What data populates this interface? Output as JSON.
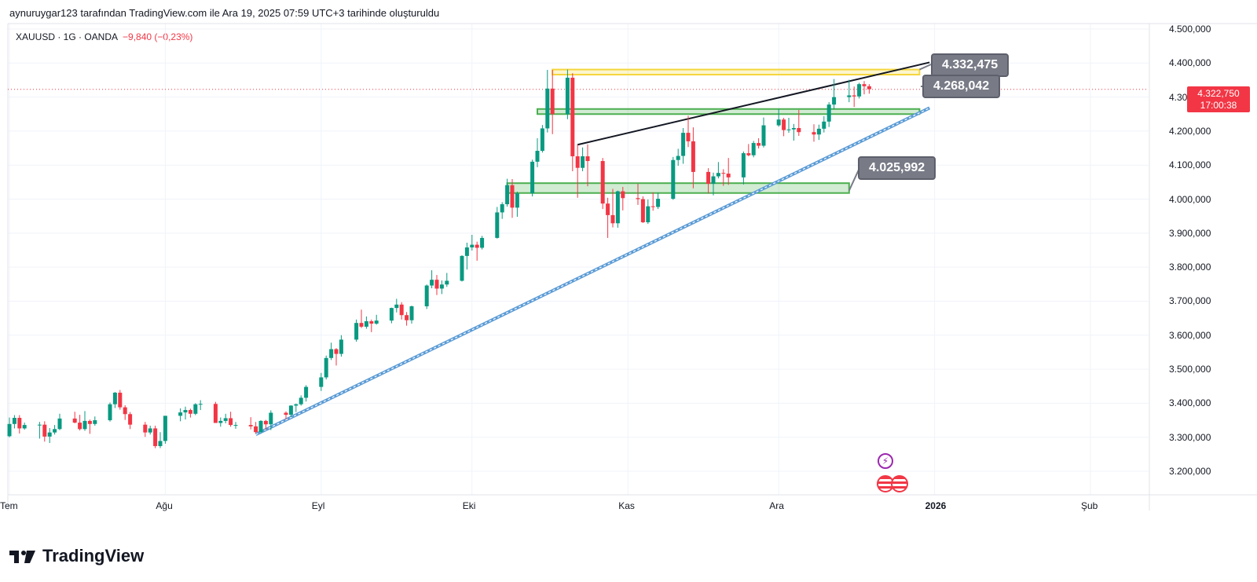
{
  "header": {
    "credit": "aynuruygar123 tarafından TradingView.com ile Ara 19, 2025 07:59 UTC+3 tarihinde oluşturuldu"
  },
  "symbol": {
    "name": "XAUUSD · 1G · OANDA",
    "change": "−9,840 (−0,23%)"
  },
  "current_price": {
    "value": "4.322,750",
    "countdown": "17:00:38"
  },
  "callouts": {
    "top": "4.332,475",
    "mid": "4.268,042",
    "low": "4.025,992"
  },
  "footer": {
    "brand": "TradingView"
  },
  "colors": {
    "up": "#089981",
    "down": "#f23645",
    "zone_green": "#4caf50",
    "zone_yellow": "#f5d63d",
    "trendline_blue": "#5b9bd5",
    "resistance_line": "#131722"
  },
  "icons": [
    "lightning-icon",
    "us-flag-icon"
  ],
  "chart_data": {
    "type": "candlestick",
    "symbol": "XAUUSD",
    "interval": "1G",
    "y_ticks": [
      3200000,
      3300000,
      3400000,
      3500000,
      3600000,
      3700000,
      3800000,
      3900000,
      4000000,
      4100000,
      4200000,
      4300000,
      4400000,
      4500000
    ],
    "y_tick_labels": [
      "3.200,000",
      "3.300,000",
      "3.400,000",
      "3.500,000",
      "3.600,000",
      "3.700,000",
      "3.800,000",
      "3.900,000",
      "4.000,000",
      "4.100,000",
      "4.200,000",
      "4.300,000",
      "4.400,000",
      "4.500,000"
    ],
    "ylim": [
      3130,
      4530
    ],
    "x_labels": [
      {
        "label": "Tem",
        "date": "2025-07-01"
      },
      {
        "label": "Ağu",
        "date": "2025-08-01"
      },
      {
        "label": "Eyl",
        "date": "2025-09-01"
      },
      {
        "label": "Eki",
        "date": "2025-10-01"
      },
      {
        "label": "Kas",
        "date": "2025-11-01"
      },
      {
        "label": "Ara",
        "date": "2025-12-01"
      },
      {
        "label": "2026",
        "date": "2026-01-01"
      },
      {
        "label": "Şub",
        "date": "2026-02-01"
      }
    ],
    "candles": [
      {
        "d": "2025-07-01",
        "o": 3303,
        "h": 3358,
        "l": 3300,
        "c": 3339
      },
      {
        "d": "2025-07-02",
        "o": 3339,
        "h": 3365,
        "l": 3326,
        "c": 3357
      },
      {
        "d": "2025-07-03",
        "o": 3357,
        "h": 3365,
        "l": 3311,
        "c": 3326
      },
      {
        "d": "2025-07-04",
        "o": 3326,
        "h": 3343,
        "l": 3322,
        "c": 3336
      },
      {
        "d": "2025-07-07",
        "o": 3336,
        "h": 3345,
        "l": 3296,
        "c": 3337
      },
      {
        "d": "2025-07-08",
        "o": 3337,
        "h": 3347,
        "l": 3287,
        "c": 3302
      },
      {
        "d": "2025-07-09",
        "o": 3302,
        "h": 3327,
        "l": 3283,
        "c": 3314
      },
      {
        "d": "2025-07-10",
        "o": 3314,
        "h": 3336,
        "l": 3308,
        "c": 3324
      },
      {
        "d": "2025-07-11",
        "o": 3324,
        "h": 3369,
        "l": 3321,
        "c": 3355
      },
      {
        "d": "2025-07-14",
        "o": 3355,
        "h": 3375,
        "l": 3341,
        "c": 3343
      },
      {
        "d": "2025-07-15",
        "o": 3343,
        "h": 3366,
        "l": 3320,
        "c": 3324
      },
      {
        "d": "2025-07-16",
        "o": 3324,
        "h": 3377,
        "l": 3319,
        "c": 3348
      },
      {
        "d": "2025-07-17",
        "o": 3348,
        "h": 3352,
        "l": 3310,
        "c": 3339
      },
      {
        "d": "2025-07-18",
        "o": 3339,
        "h": 3361,
        "l": 3334,
        "c": 3350
      },
      {
        "d": "2025-07-21",
        "o": 3350,
        "h": 3402,
        "l": 3346,
        "c": 3397
      },
      {
        "d": "2025-07-22",
        "o": 3397,
        "h": 3433,
        "l": 3386,
        "c": 3431
      },
      {
        "d": "2025-07-23",
        "o": 3431,
        "h": 3439,
        "l": 3381,
        "c": 3388
      },
      {
        "d": "2025-07-24",
        "o": 3388,
        "h": 3394,
        "l": 3351,
        "c": 3368
      },
      {
        "d": "2025-07-25",
        "o": 3368,
        "h": 3374,
        "l": 3324,
        "c": 3337
      },
      {
        "d": "2025-07-28",
        "o": 3337,
        "h": 3345,
        "l": 3301,
        "c": 3314
      },
      {
        "d": "2025-07-29",
        "o": 3314,
        "h": 3334,
        "l": 3308,
        "c": 3326
      },
      {
        "d": "2025-07-30",
        "o": 3326,
        "h": 3334,
        "l": 3268,
        "c": 3274
      },
      {
        "d": "2025-07-31",
        "o": 3274,
        "h": 3315,
        "l": 3268,
        "c": 3289
      },
      {
        "d": "2025-08-01",
        "o": 3289,
        "h": 3363,
        "l": 3281,
        "c": 3363
      },
      {
        "d": "2025-08-04",
        "o": 3363,
        "h": 3385,
        "l": 3347,
        "c": 3373
      },
      {
        "d": "2025-08-05",
        "o": 3373,
        "h": 3390,
        "l": 3352,
        "c": 3380
      },
      {
        "d": "2025-08-06",
        "o": 3380,
        "h": 3384,
        "l": 3358,
        "c": 3369
      },
      {
        "d": "2025-08-07",
        "o": 3369,
        "h": 3400,
        "l": 3365,
        "c": 3397
      },
      {
        "d": "2025-08-08",
        "o": 3397,
        "h": 3409,
        "l": 3380,
        "c": 3398
      },
      {
        "d": "2025-08-11",
        "o": 3398,
        "h": 3404,
        "l": 3343,
        "c": 3342
      },
      {
        "d": "2025-08-12",
        "o": 3342,
        "h": 3358,
        "l": 3331,
        "c": 3348
      },
      {
        "d": "2025-08-13",
        "o": 3348,
        "h": 3369,
        "l": 3341,
        "c": 3356
      },
      {
        "d": "2025-08-14",
        "o": 3356,
        "h": 3375,
        "l": 3331,
        "c": 3336
      },
      {
        "d": "2025-08-15",
        "o": 3336,
        "h": 3345,
        "l": 3325,
        "c": 3336
      },
      {
        "d": "2025-08-18",
        "o": 3336,
        "h": 3359,
        "l": 3323,
        "c": 3332
      },
      {
        "d": "2025-08-19",
        "o": 3332,
        "h": 3345,
        "l": 3311,
        "c": 3315
      },
      {
        "d": "2025-08-20",
        "o": 3315,
        "h": 3350,
        "l": 3312,
        "c": 3348
      },
      {
        "d": "2025-08-21",
        "o": 3348,
        "h": 3351,
        "l": 3322,
        "c": 3338
      },
      {
        "d": "2025-08-22",
        "o": 3338,
        "h": 3379,
        "l": 3321,
        "c": 3372
      },
      {
        "d": "2025-08-25",
        "o": 3372,
        "h": 3376,
        "l": 3352,
        "c": 3366
      },
      {
        "d": "2025-08-26",
        "o": 3366,
        "h": 3394,
        "l": 3359,
        "c": 3393
      },
      {
        "d": "2025-08-27",
        "o": 3393,
        "h": 3399,
        "l": 3374,
        "c": 3397
      },
      {
        "d": "2025-08-28",
        "o": 3397,
        "h": 3423,
        "l": 3393,
        "c": 3416
      },
      {
        "d": "2025-08-29",
        "o": 3416,
        "h": 3453,
        "l": 3405,
        "c": 3448
      },
      {
        "d": "2025-09-01",
        "o": 3448,
        "h": 3489,
        "l": 3436,
        "c": 3476
      },
      {
        "d": "2025-09-02",
        "o": 3476,
        "h": 3540,
        "l": 3470,
        "c": 3533
      },
      {
        "d": "2025-09-03",
        "o": 3533,
        "h": 3578,
        "l": 3527,
        "c": 3559
      },
      {
        "d": "2025-09-04",
        "o": 3559,
        "h": 3562,
        "l": 3511,
        "c": 3545
      },
      {
        "d": "2025-09-05",
        "o": 3545,
        "h": 3600,
        "l": 3537,
        "c": 3587
      },
      {
        "d": "2025-09-08",
        "o": 3587,
        "h": 3646,
        "l": 3581,
        "c": 3636
      },
      {
        "d": "2025-09-09",
        "o": 3636,
        "h": 3675,
        "l": 3621,
        "c": 3625
      },
      {
        "d": "2025-09-10",
        "o": 3625,
        "h": 3655,
        "l": 3619,
        "c": 3641
      },
      {
        "d": "2025-09-11",
        "o": 3641,
        "h": 3646,
        "l": 3609,
        "c": 3634
      },
      {
        "d": "2025-09-12",
        "o": 3634,
        "h": 3660,
        "l": 3631,
        "c": 3643
      },
      {
        "d": "2025-09-15",
        "o": 3643,
        "h": 3681,
        "l": 3635,
        "c": 3680
      },
      {
        "d": "2025-09-16",
        "o": 3680,
        "h": 3707,
        "l": 3667,
        "c": 3690
      },
      {
        "d": "2025-09-17",
        "o": 3690,
        "h": 3697,
        "l": 3646,
        "c": 3659
      },
      {
        "d": "2025-09-18",
        "o": 3659,
        "h": 3668,
        "l": 3628,
        "c": 3644
      },
      {
        "d": "2025-09-19",
        "o": 3644,
        "h": 3687,
        "l": 3634,
        "c": 3685
      },
      {
        "d": "2025-09-22",
        "o": 3685,
        "h": 3749,
        "l": 3677,
        "c": 3746
      },
      {
        "d": "2025-09-23",
        "o": 3746,
        "h": 3791,
        "l": 3738,
        "c": 3763
      },
      {
        "d": "2025-09-24",
        "o": 3763,
        "h": 3777,
        "l": 3718,
        "c": 3737
      },
      {
        "d": "2025-09-25",
        "o": 3737,
        "h": 3761,
        "l": 3721,
        "c": 3749
      },
      {
        "d": "2025-09-26",
        "o": 3749,
        "h": 3783,
        "l": 3742,
        "c": 3760
      },
      {
        "d": "2025-09-29",
        "o": 3760,
        "h": 3835,
        "l": 3758,
        "c": 3833
      },
      {
        "d": "2025-09-30",
        "o": 3833,
        "h": 3872,
        "l": 3793,
        "c": 3858
      },
      {
        "d": "2025-10-01",
        "o": 3858,
        "h": 3895,
        "l": 3849,
        "c": 3866
      },
      {
        "d": "2025-10-02",
        "o": 3866,
        "h": 3875,
        "l": 3819,
        "c": 3857
      },
      {
        "d": "2025-10-03",
        "o": 3857,
        "h": 3892,
        "l": 3852,
        "c": 3886
      },
      {
        "d": "2025-10-06",
        "o": 3886,
        "h": 3977,
        "l": 3884,
        "c": 3961
      },
      {
        "d": "2025-10-07",
        "o": 3961,
        "h": 3991,
        "l": 3942,
        "c": 3985
      },
      {
        "d": "2025-10-08",
        "o": 3985,
        "h": 4060,
        "l": 3978,
        "c": 4041
      },
      {
        "d": "2025-10-09",
        "o": 4041,
        "h": 4059,
        "l": 3945,
        "c": 3975
      },
      {
        "d": "2025-10-10",
        "o": 3975,
        "h": 4022,
        "l": 3948,
        "c": 4017
      },
      {
        "d": "2025-10-13",
        "o": 4017,
        "h": 4116,
        "l": 4008,
        "c": 4110
      },
      {
        "d": "2025-10-14",
        "o": 4110,
        "h": 4179,
        "l": 4094,
        "c": 4142
      },
      {
        "d": "2025-10-15",
        "o": 4142,
        "h": 4218,
        "l": 4137,
        "c": 4208
      },
      {
        "d": "2025-10-16",
        "o": 4208,
        "h": 4380,
        "l": 4196,
        "c": 4325
      },
      {
        "d": "2025-10-17",
        "o": 4325,
        "h": 4380,
        "l": 4191,
        "c": 4250
      },
      {
        "d": "2025-10-20",
        "o": 4250,
        "h": 4381,
        "l": 4235,
        "c": 4357
      },
      {
        "d": "2025-10-21",
        "o": 4357,
        "h": 4370,
        "l": 4082,
        "c": 4126
      },
      {
        "d": "2025-10-22",
        "o": 4126,
        "h": 4162,
        "l": 4004,
        "c": 4092
      },
      {
        "d": "2025-10-23",
        "o": 4092,
        "h": 4152,
        "l": 4082,
        "c": 4126
      },
      {
        "d": "2025-10-24",
        "o": 4126,
        "h": 4161,
        "l": 4038,
        "c": 4112
      },
      {
        "d": "2025-10-27",
        "o": 4112,
        "h": 4121,
        "l": 3971,
        "c": 3987
      },
      {
        "d": "2025-10-28",
        "o": 3987,
        "h": 4004,
        "l": 3886,
        "c": 3953
      },
      {
        "d": "2025-10-29",
        "o": 3953,
        "h": 4030,
        "l": 3917,
        "c": 3929
      },
      {
        "d": "2025-10-30",
        "o": 3929,
        "h": 4025,
        "l": 3916,
        "c": 4023
      },
      {
        "d": "2025-10-31",
        "o": 4023,
        "h": 4036,
        "l": 3967,
        "c": 4003
      },
      {
        "d": "2025-11-03",
        "o": 4003,
        "h": 4045,
        "l": 3983,
        "c": 4000
      },
      {
        "d": "2025-11-04",
        "o": 4000,
        "h": 4008,
        "l": 3930,
        "c": 3932
      },
      {
        "d": "2025-11-05",
        "o": 3932,
        "h": 3999,
        "l": 3927,
        "c": 3979
      },
      {
        "d": "2025-11-06",
        "o": 3979,
        "h": 4020,
        "l": 3966,
        "c": 3977
      },
      {
        "d": "2025-11-07",
        "o": 3977,
        "h": 4019,
        "l": 3971,
        "c": 4001
      },
      {
        "d": "2025-11-10",
        "o": 4001,
        "h": 4124,
        "l": 3998,
        "c": 4115
      },
      {
        "d": "2025-11-11",
        "o": 4115,
        "h": 4148,
        "l": 4098,
        "c": 4127
      },
      {
        "d": "2025-11-12",
        "o": 4127,
        "h": 4209,
        "l": 4104,
        "c": 4195
      },
      {
        "d": "2025-11-13",
        "o": 4195,
        "h": 4245,
        "l": 4153,
        "c": 4170
      },
      {
        "d": "2025-11-14",
        "o": 4170,
        "h": 4211,
        "l": 4032,
        "c": 4080
      },
      {
        "d": "2025-11-17",
        "o": 4080,
        "h": 4091,
        "l": 4017,
        "c": 4045
      },
      {
        "d": "2025-11-18",
        "o": 4045,
        "h": 4078,
        "l": 4011,
        "c": 4067
      },
      {
        "d": "2025-11-19",
        "o": 4067,
        "h": 4109,
        "l": 4061,
        "c": 4077
      },
      {
        "d": "2025-11-20",
        "o": 4077,
        "h": 4088,
        "l": 4039,
        "c": 4075
      },
      {
        "d": "2025-11-21",
        "o": 4075,
        "h": 4121,
        "l": 4042,
        "c": 4064
      },
      {
        "d": "2025-11-24",
        "o": 4064,
        "h": 4140,
        "l": 4043,
        "c": 4135
      },
      {
        "d": "2025-11-25",
        "o": 4135,
        "h": 4162,
        "l": 4126,
        "c": 4129
      },
      {
        "d": "2025-11-26",
        "o": 4129,
        "h": 4171,
        "l": 4123,
        "c": 4165
      },
      {
        "d": "2025-11-27",
        "o": 4165,
        "h": 4179,
        "l": 4149,
        "c": 4157
      },
      {
        "d": "2025-11-28",
        "o": 4157,
        "h": 4240,
        "l": 4152,
        "c": 4217
      },
      {
        "d": "2025-12-01",
        "o": 4217,
        "h": 4265,
        "l": 4213,
        "c": 4234
      },
      {
        "d": "2025-12-02",
        "o": 4234,
        "h": 4239,
        "l": 4185,
        "c": 4203
      },
      {
        "d": "2025-12-03",
        "o": 4203,
        "h": 4239,
        "l": 4195,
        "c": 4205
      },
      {
        "d": "2025-12-04",
        "o": 4205,
        "h": 4221,
        "l": 4172,
        "c": 4209
      },
      {
        "d": "2025-12-05",
        "o": 4209,
        "h": 4262,
        "l": 4186,
        "c": 4197
      },
      {
        "d": "2025-12-08",
        "o": 4197,
        "h": 4220,
        "l": 4169,
        "c": 4190
      },
      {
        "d": "2025-12-09",
        "o": 4190,
        "h": 4219,
        "l": 4174,
        "c": 4207
      },
      {
        "d": "2025-12-10",
        "o": 4207,
        "h": 4244,
        "l": 4196,
        "c": 4228
      },
      {
        "d": "2025-12-11",
        "o": 4228,
        "h": 4285,
        "l": 4212,
        "c": 4278
      },
      {
        "d": "2025-12-12",
        "o": 4278,
        "h": 4353,
        "l": 4264,
        "c": 4300
      },
      {
        "d": "2025-12-15",
        "o": 4300,
        "h": 4351,
        "l": 4285,
        "c": 4305
      },
      {
        "d": "2025-12-16",
        "o": 4305,
        "h": 4331,
        "l": 4271,
        "c": 4302
      },
      {
        "d": "2025-12-17",
        "o": 4302,
        "h": 4342,
        "l": 4296,
        "c": 4338
      },
      {
        "d": "2025-12-18",
        "o": 4338,
        "h": 4347,
        "l": 4308,
        "c": 4332
      },
      {
        "d": "2025-12-19",
        "o": 4332,
        "h": 4338,
        "l": 4310,
        "c": 4323
      }
    ],
    "zones": [
      {
        "name": "resistance-zone",
        "color": "yellow",
        "from": "2025-10-17",
        "to": "2025-12-29",
        "low": 4366,
        "high": 4381
      },
      {
        "name": "support-zone-upper",
        "color": "green",
        "from": "2025-10-14",
        "to": "2025-12-29",
        "low": 4250,
        "high": 4265
      },
      {
        "name": "support-zone-lower",
        "color": "green",
        "from": "2025-10-08",
        "to": "2025-12-15",
        "low": 4018,
        "high": 4047
      }
    ],
    "lines": [
      {
        "name": "ascending-trendline",
        "color": "blue",
        "from": {
          "d": "2025-08-19",
          "p": 3308
        },
        "to": {
          "d": "2025-12-31",
          "p": 4268
        }
      },
      {
        "name": "resistance-trendline",
        "color": "black",
        "from": {
          "d": "2025-10-22",
          "p": 4160
        },
        "to": {
          "d": "2025-12-31",
          "p": 4402
        }
      }
    ],
    "last_price_line": 4322.75
  }
}
